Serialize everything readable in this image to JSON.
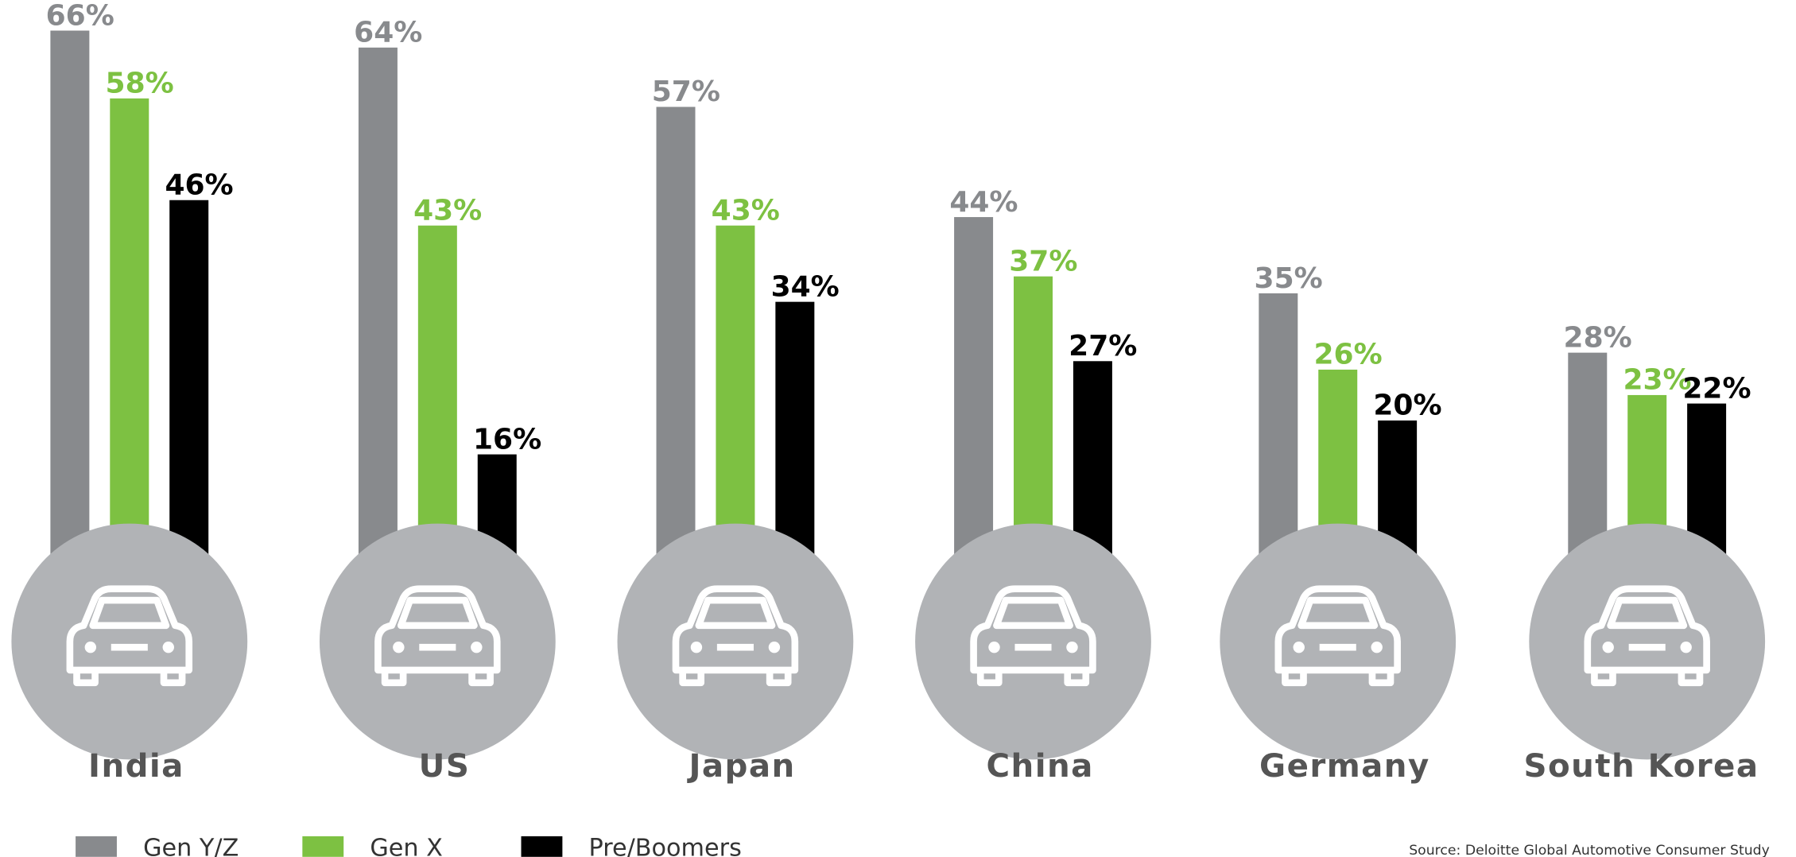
{
  "chart_data": {
    "type": "bar",
    "categories": [
      "India",
      "US",
      "Japan",
      "China",
      "Germany",
      "South Korea"
    ],
    "series": [
      {
        "name": "Gen Y/Z",
        "color": "#888a8d",
        "values": [
          66,
          64,
          57,
          44,
          35,
          28
        ],
        "value_labels": [
          "66%",
          "64%",
          "57%",
          "44%",
          "35%",
          "28%"
        ]
      },
      {
        "name": "Gen X",
        "color": "#7dc142",
        "values": [
          58,
          43,
          43,
          37,
          26,
          23
        ],
        "value_labels": [
          "58%",
          "43%",
          "43%",
          "37%",
          "26%",
          "23%"
        ]
      },
      {
        "name": "Pre/Boomers",
        "color": "#000000",
        "values": [
          46,
          16,
          34,
          27,
          20,
          22
        ],
        "value_labels": [
          "46%",
          "16%",
          "34%",
          "27%",
          "20%",
          "22%"
        ]
      }
    ],
    "source": "Source: Deloitte Global Automotive Consumer Study"
  }
}
